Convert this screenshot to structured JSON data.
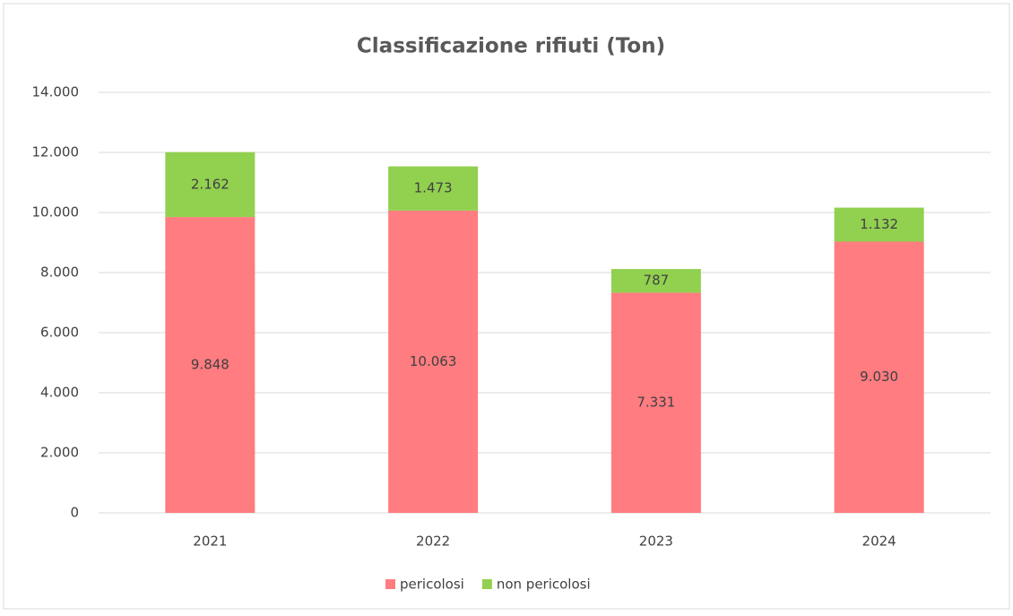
{
  "chart_data": {
    "type": "stacked_bar",
    "title": "Classificazione rifiuti (Ton)",
    "categories": [
      "2021",
      "2022",
      "2023",
      "2024"
    ],
    "series": [
      {
        "name": "pericolosi",
        "color": "#ff7c80",
        "values": [
          9848,
          10063,
          7331,
          9030
        ],
        "value_labels": [
          "9.848",
          "10.063",
          "7.331",
          "9.030"
        ]
      },
      {
        "name": "non pericolosi",
        "color": "#92d050",
        "values": [
          2162,
          1473,
          787,
          1132
        ],
        "value_labels": [
          "2.162",
          "1.473",
          "787",
          "1.132"
        ]
      }
    ],
    "ylim": [
      0,
      14000
    ],
    "yticks": [
      0,
      {
        "value": 2000,
        "label": "2.000"
      },
      {
        "value": 4000,
        "label": "4.000"
      },
      {
        "value": 6000,
        "label": "6.000"
      },
      {
        "value": 8000,
        "label": "8.000"
      },
      {
        "value": 10000,
        "label": "10.000"
      },
      {
        "value": 12000,
        "label": "12.000"
      },
      {
        "value": 14000,
        "label": "14.000"
      }
    ],
    "grid": true,
    "legend": "bottom"
  }
}
